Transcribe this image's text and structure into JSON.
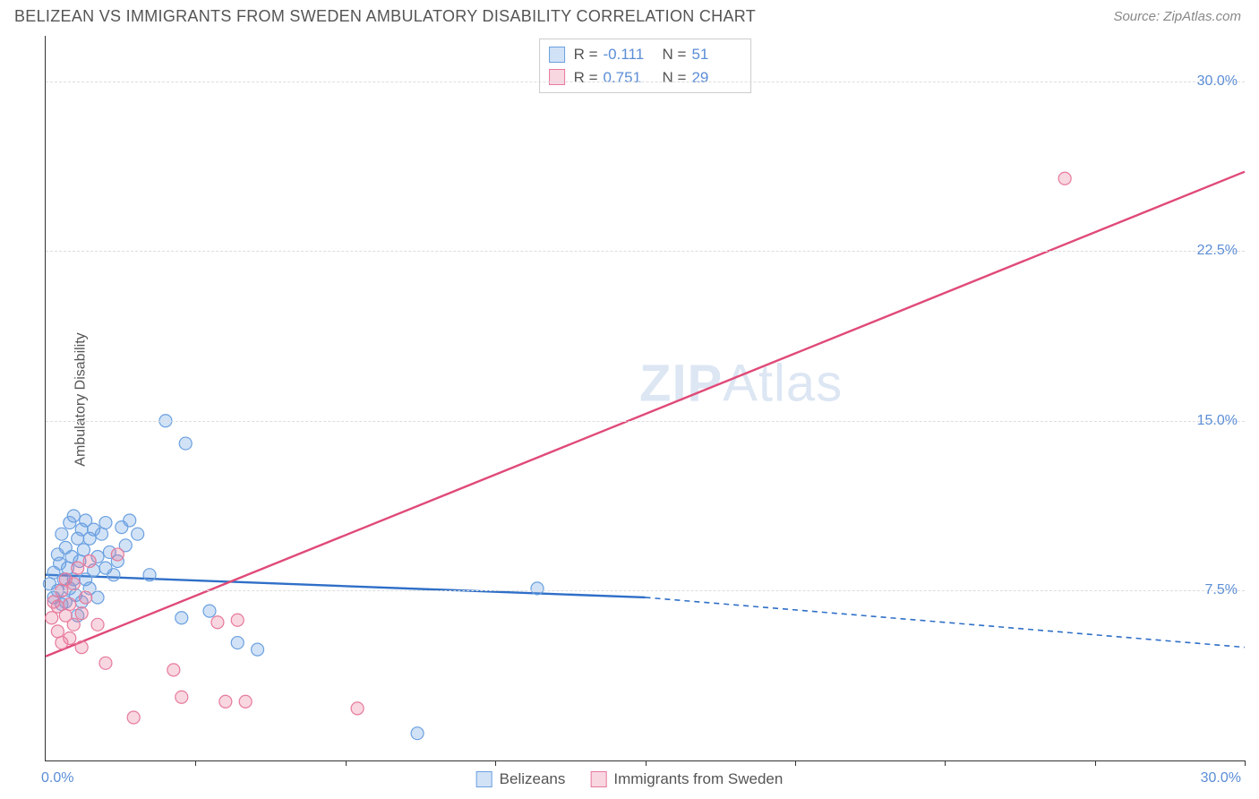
{
  "header": {
    "title": "BELIZEAN VS IMMIGRANTS FROM SWEDEN AMBULATORY DISABILITY CORRELATION CHART",
    "source": "Source: ZipAtlas.com"
  },
  "watermark": {
    "left": "ZIP",
    "right": "Atlas"
  },
  "chart": {
    "type": "scatter",
    "y_label": "Ambulatory Disability",
    "xlim": [
      0,
      30
    ],
    "ylim": [
      0,
      32
    ],
    "x_origin_label": "0.0%",
    "x_max_label": "30.0%",
    "y_ticks": [
      {
        "value": 7.5,
        "label": "7.5%"
      },
      {
        "value": 15.0,
        "label": "15.0%"
      },
      {
        "value": 22.5,
        "label": "22.5%"
      },
      {
        "value": 30.0,
        "label": "30.0%"
      }
    ],
    "x_tick_positions": [
      3.75,
      7.5,
      11.25,
      15.0,
      18.75,
      22.5,
      26.25,
      30.0
    ],
    "background_color": "#ffffff",
    "grid_color": "#dddddd",
    "marker_radius": 7,
    "marker_stroke_width": 1.2,
    "marker_fill_opacity": 0.3,
    "trend_line_width": 2.4,
    "series": [
      {
        "key": "belizeans",
        "name": "Belizeans",
        "color": "#6aa0e0",
        "line_color": "#2f6fc8",
        "R": "-0.111",
        "N": "51",
        "trend": {
          "solid": {
            "x1": 0,
            "y1": 8.2,
            "x2": 15.0,
            "y2": 7.2
          },
          "dashed": {
            "x1": 15.0,
            "y1": 7.2,
            "x2": 30.0,
            "y2": 5.0
          }
        },
        "points": [
          [
            0.1,
            7.8
          ],
          [
            0.2,
            8.3
          ],
          [
            0.2,
            7.2
          ],
          [
            0.3,
            9.1
          ],
          [
            0.3,
            7.5
          ],
          [
            0.35,
            8.7
          ],
          [
            0.4,
            10.0
          ],
          [
            0.4,
            6.9
          ],
          [
            0.45,
            8.0
          ],
          [
            0.5,
            9.4
          ],
          [
            0.5,
            7.0
          ],
          [
            0.55,
            8.5
          ],
          [
            0.6,
            10.5
          ],
          [
            0.6,
            7.6
          ],
          [
            0.65,
            9.0
          ],
          [
            0.7,
            8.0
          ],
          [
            0.7,
            10.8
          ],
          [
            0.75,
            7.3
          ],
          [
            0.8,
            9.8
          ],
          [
            0.8,
            6.4
          ],
          [
            0.85,
            8.8
          ],
          [
            0.9,
            10.2
          ],
          [
            0.9,
            7.0
          ],
          [
            0.95,
            9.3
          ],
          [
            1.0,
            8.0
          ],
          [
            1.0,
            10.6
          ],
          [
            1.1,
            7.6
          ],
          [
            1.1,
            9.8
          ],
          [
            1.2,
            10.2
          ],
          [
            1.2,
            8.4
          ],
          [
            1.3,
            9.0
          ],
          [
            1.3,
            7.2
          ],
          [
            1.4,
            10.0
          ],
          [
            1.5,
            8.5
          ],
          [
            1.5,
            10.5
          ],
          [
            1.6,
            9.2
          ],
          [
            1.7,
            8.2
          ],
          [
            1.8,
            8.8
          ],
          [
            1.9,
            10.3
          ],
          [
            2.0,
            9.5
          ],
          [
            2.1,
            10.6
          ],
          [
            2.3,
            10.0
          ],
          [
            2.6,
            8.2
          ],
          [
            3.0,
            15.0
          ],
          [
            3.4,
            6.3
          ],
          [
            3.5,
            14.0
          ],
          [
            4.1,
            6.6
          ],
          [
            4.8,
            5.2
          ],
          [
            5.3,
            4.9
          ],
          [
            9.3,
            1.2
          ],
          [
            12.3,
            7.6
          ]
        ]
      },
      {
        "key": "sweden",
        "name": "Immigrants from Sweden",
        "color": "#e77a9b",
        "line_color": "#e04a78",
        "R": "0.751",
        "N": "29",
        "trend": {
          "solid": {
            "x1": 0,
            "y1": 4.6,
            "x2": 30.0,
            "y2": 26.0
          }
        },
        "points": [
          [
            0.15,
            6.3
          ],
          [
            0.2,
            7.0
          ],
          [
            0.3,
            5.7
          ],
          [
            0.3,
            6.8
          ],
          [
            0.4,
            7.5
          ],
          [
            0.4,
            5.2
          ],
          [
            0.5,
            6.4
          ],
          [
            0.5,
            8.0
          ],
          [
            0.6,
            6.9
          ],
          [
            0.6,
            5.4
          ],
          [
            0.7,
            7.8
          ],
          [
            0.7,
            6.0
          ],
          [
            0.8,
            8.5
          ],
          [
            0.9,
            6.5
          ],
          [
            0.9,
            5.0
          ],
          [
            1.0,
            7.2
          ],
          [
            1.1,
            8.8
          ],
          [
            1.3,
            6.0
          ],
          [
            1.5,
            4.3
          ],
          [
            1.8,
            9.1
          ],
          [
            2.2,
            1.9
          ],
          [
            3.2,
            4.0
          ],
          [
            3.4,
            2.8
          ],
          [
            4.3,
            6.1
          ],
          [
            4.5,
            2.6
          ],
          [
            4.8,
            6.2
          ],
          [
            5.0,
            2.6
          ],
          [
            7.8,
            2.3
          ],
          [
            25.5,
            25.7
          ]
        ]
      }
    ],
    "bottom_legend": [
      {
        "label": "Belizeans",
        "color": "#6aa0e0"
      },
      {
        "label": "Immigrants from Sweden",
        "color": "#e77a9b"
      }
    ]
  }
}
